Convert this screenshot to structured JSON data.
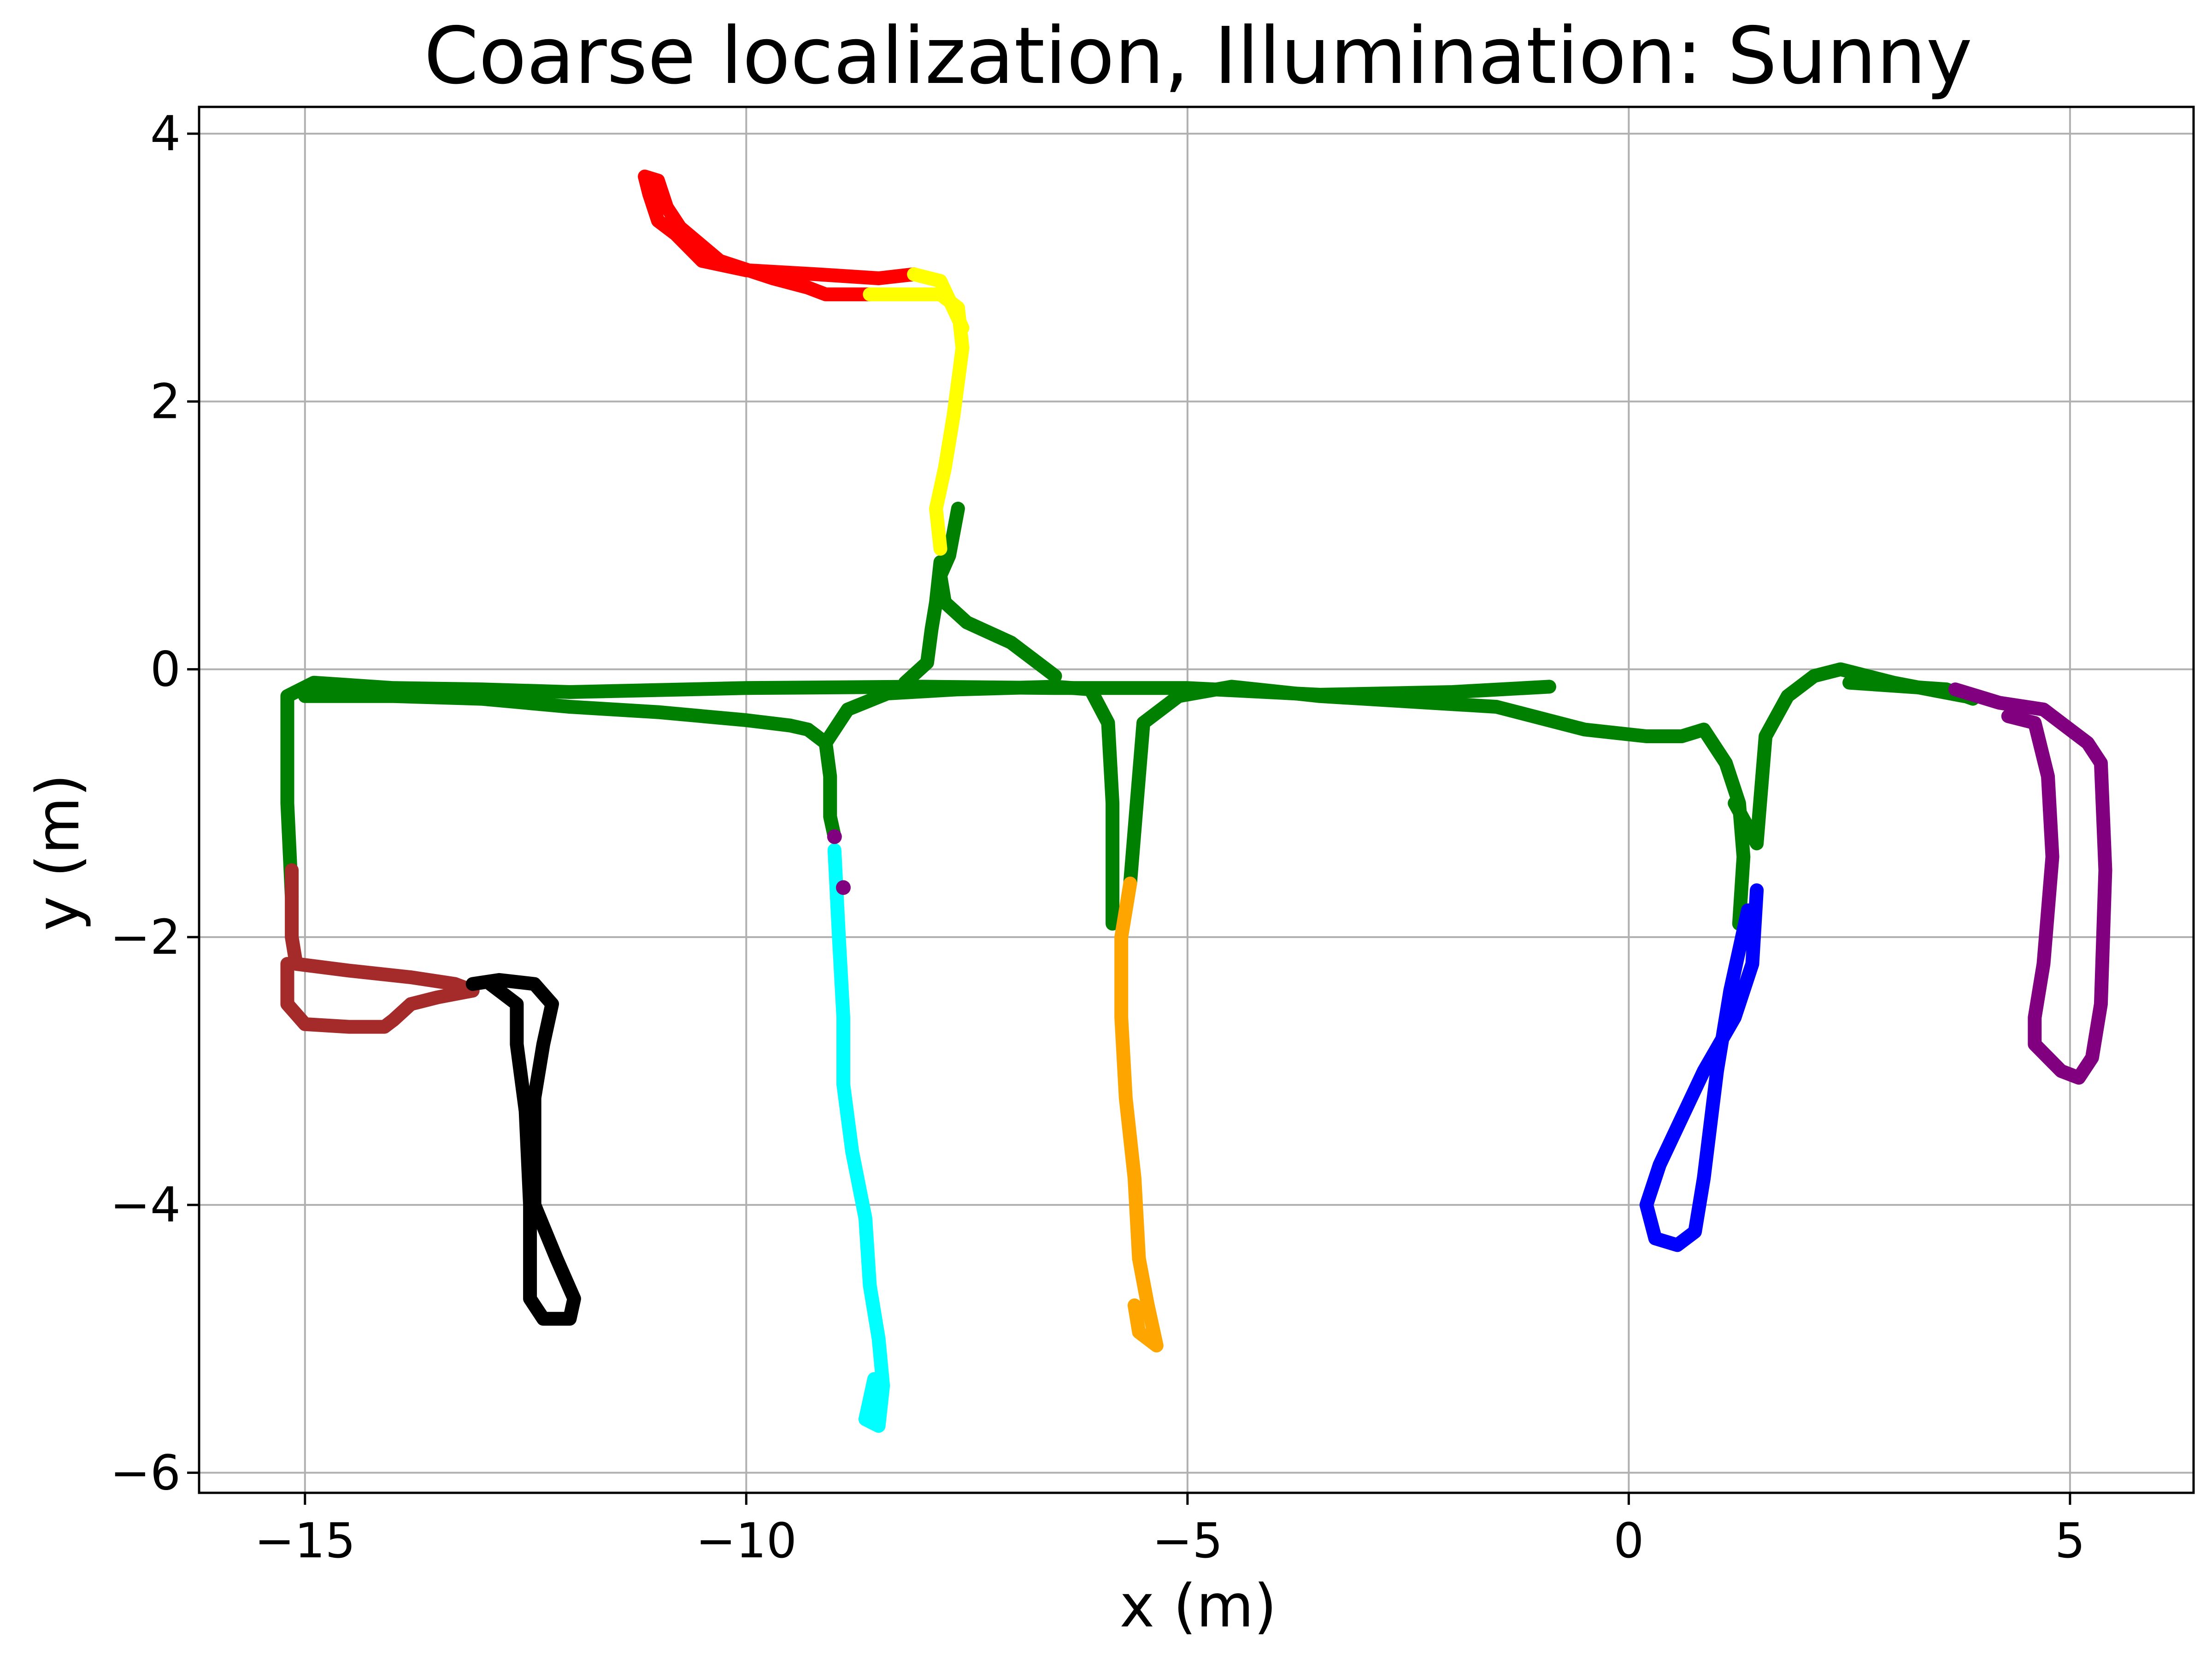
{
  "chart_data": {
    "type": "scatter",
    "title": "Coarse localization, Illumination: Sunny",
    "xlabel": "x (m)",
    "ylabel": "y (m)",
    "xlim": [
      -16.2,
      6.4
    ],
    "ylim": [
      -6.15,
      4.2
    ],
    "xticks": [
      -15,
      -10,
      -5,
      0,
      5
    ],
    "xtick_labels": [
      "−15",
      "−10",
      "−5",
      "0",
      "5"
    ],
    "yticks": [
      -6,
      -4,
      -2,
      0,
      2,
      4
    ],
    "ytick_labels": [
      "−6",
      "−4",
      "−2",
      "0",
      "2",
      "4"
    ],
    "grid": true,
    "series": [
      {
        "color": "#008000",
        "paths": [
          [
            [
              -0.9,
              -0.13
            ],
            [
              -2.0,
              -0.17
            ],
            [
              -3.5,
              -0.19
            ],
            [
              -5.0,
              -0.14
            ],
            [
              -6.5,
              -0.14
            ],
            [
              -8.0,
              -0.13
            ],
            [
              -10.0,
              -0.14
            ],
            [
              -12.0,
              -0.17
            ],
            [
              -13.0,
              -0.15
            ],
            [
              -14.0,
              -0.14
            ],
            [
              -14.9,
              -0.1
            ],
            [
              -15.2,
              -0.2
            ],
            [
              -15.2,
              -1.0
            ],
            [
              -15.15,
              -1.7
            ]
          ],
          [
            [
              -15.0,
              -0.2
            ],
            [
              -14.0,
              -0.2
            ],
            [
              -13.0,
              -0.22
            ],
            [
              -12.0,
              -0.28
            ],
            [
              -11.0,
              -0.32
            ],
            [
              -10.0,
              -0.38
            ],
            [
              -9.5,
              -0.42
            ],
            [
              -9.3,
              -0.45
            ],
            [
              -9.1,
              -0.55
            ],
            [
              -9.05,
              -0.8
            ],
            [
              -9.05,
              -1.1
            ],
            [
              -9.0,
              -1.25
            ]
          ],
          [
            [
              -9.1,
              -0.55
            ],
            [
              -8.85,
              -0.3
            ],
            [
              -8.4,
              -0.18
            ],
            [
              -7.6,
              -0.15
            ],
            [
              -6.5,
              -0.13
            ],
            [
              -6.1,
              -0.15
            ],
            [
              -5.9,
              -0.4
            ],
            [
              -5.85,
              -1.0
            ],
            [
              -5.85,
              -1.9
            ]
          ],
          [
            [
              -5.65,
              -1.6
            ],
            [
              -5.55,
              -0.8
            ],
            [
              -5.5,
              -0.4
            ],
            [
              -5.1,
              -0.2
            ],
            [
              -4.5,
              -0.13
            ],
            [
              -3.5,
              -0.2
            ],
            [
              -2.5,
              -0.24
            ],
            [
              -1.5,
              -0.28
            ],
            [
              -0.5,
              -0.45
            ],
            [
              0.2,
              -0.5
            ],
            [
              0.6,
              -0.5
            ],
            [
              0.85,
              -0.45
            ],
            [
              1.1,
              -0.7
            ],
            [
              1.25,
              -1.0
            ],
            [
              1.3,
              -1.4
            ],
            [
              1.25,
              -1.9
            ]
          ],
          [
            [
              1.2,
              -1.0
            ],
            [
              1.45,
              -1.3
            ],
            [
              1.55,
              -0.5
            ],
            [
              1.8,
              -0.2
            ],
            [
              2.1,
              -0.05
            ],
            [
              2.4,
              0.0
            ],
            [
              3.0,
              -0.1
            ],
            [
              3.8,
              -0.2
            ]
          ],
          [
            [
              2.5,
              -0.1
            ],
            [
              3.6,
              -0.15
            ],
            [
              3.9,
              -0.22
            ]
          ],
          [
            [
              -7.6,
              1.2
            ],
            [
              -7.7,
              0.85
            ],
            [
              -7.8,
              0.7
            ],
            [
              -7.75,
              0.5
            ],
            [
              -7.5,
              0.35
            ],
            [
              -7.0,
              0.2
            ],
            [
              -6.7,
              0.05
            ],
            [
              -6.5,
              -0.05
            ]
          ],
          [
            [
              -7.8,
              0.8
            ],
            [
              -7.85,
              0.5
            ],
            [
              -7.9,
              0.3
            ],
            [
              -7.95,
              0.05
            ],
            [
              -8.2,
              -0.1
            ]
          ]
        ]
      },
      {
        "color": "#ff0000",
        "paths": [
          [
            [
              -8.1,
              2.95
            ],
            [
              -8.5,
              2.92
            ],
            [
              -9.2,
              2.95
            ],
            [
              -10.0,
              2.98
            ],
            [
              -10.5,
              3.05
            ],
            [
              -10.8,
              3.25
            ],
            [
              -11.0,
              3.35
            ],
            [
              -11.1,
              3.55
            ],
            [
              -11.15,
              3.68
            ],
            [
              -11.0,
              3.65
            ],
            [
              -10.9,
              3.45
            ],
            [
              -10.75,
              3.3
            ],
            [
              -10.3,
              3.05
            ],
            [
              -9.7,
              2.92
            ],
            [
              -9.3,
              2.85
            ],
            [
              -9.1,
              2.8
            ],
            [
              -8.6,
              2.8
            ]
          ]
        ]
      },
      {
        "color": "#ffff00",
        "paths": [
          [
            [
              -8.6,
              2.8
            ],
            [
              -7.8,
              2.8
            ],
            [
              -7.6,
              2.7
            ],
            [
              -7.55,
              2.4
            ],
            [
              -7.65,
              1.9
            ],
            [
              -7.75,
              1.5
            ],
            [
              -7.85,
              1.2
            ],
            [
              -7.8,
              0.9
            ]
          ],
          [
            [
              -8.1,
              2.95
            ],
            [
              -7.8,
              2.9
            ],
            [
              -7.55,
              2.55
            ]
          ]
        ]
      },
      {
        "color": "#a52a2a",
        "paths": [
          [
            [
              -15.15,
              -1.5
            ],
            [
              -15.15,
              -2.0
            ],
            [
              -15.1,
              -2.2
            ],
            [
              -14.5,
              -2.25
            ],
            [
              -13.8,
              -2.3
            ],
            [
              -13.3,
              -2.35
            ],
            [
              -13.1,
              -2.4
            ],
            [
              -13.5,
              -2.45
            ],
            [
              -13.8,
              -2.5
            ],
            [
              -14.0,
              -2.62
            ],
            [
              -14.1,
              -2.67
            ],
            [
              -14.5,
              -2.67
            ],
            [
              -15.0,
              -2.65
            ],
            [
              -15.2,
              -2.5
            ],
            [
              -15.2,
              -2.2
            ]
          ]
        ]
      },
      {
        "color": "#000000",
        "paths": [
          [
            [
              -13.1,
              -2.35
            ],
            [
              -12.8,
              -2.32
            ],
            [
              -12.4,
              -2.35
            ],
            [
              -12.2,
              -2.5
            ],
            [
              -12.3,
              -2.8
            ],
            [
              -12.4,
              -3.2
            ],
            [
              -12.4,
              -4.0
            ],
            [
              -12.15,
              -4.4
            ],
            [
              -11.95,
              -4.7
            ],
            [
              -12.0,
              -4.85
            ],
            [
              -12.3,
              -4.85
            ],
            [
              -12.45,
              -4.7
            ],
            [
              -12.45,
              -4.0
            ],
            [
              -12.5,
              -3.3
            ],
            [
              -12.6,
              -2.8
            ],
            [
              -12.6,
              -2.5
            ],
            [
              -12.9,
              -2.35
            ]
          ]
        ]
      },
      {
        "color": "#00ffff",
        "paths": [
          [
            [
              -9.0,
              -1.35
            ],
            [
              -8.95,
              -2.0
            ],
            [
              -8.9,
              -2.6
            ],
            [
              -8.9,
              -3.1
            ],
            [
              -8.8,
              -3.6
            ],
            [
              -8.65,
              -4.1
            ],
            [
              -8.6,
              -4.6
            ],
            [
              -8.5,
              -5.0
            ],
            [
              -8.45,
              -5.35
            ],
            [
              -8.5,
              -5.65
            ],
            [
              -8.65,
              -5.6
            ],
            [
              -8.55,
              -5.3
            ]
          ]
        ]
      },
      {
        "color": "#ffa500",
        "paths": [
          [
            [
              -5.65,
              -1.6
            ],
            [
              -5.75,
              -2.0
            ],
            [
              -5.75,
              -2.6
            ],
            [
              -5.7,
              -3.2
            ],
            [
              -5.6,
              -3.8
            ],
            [
              -5.55,
              -4.4
            ],
            [
              -5.45,
              -4.75
            ],
            [
              -5.35,
              -5.05
            ],
            [
              -5.55,
              -4.95
            ],
            [
              -5.6,
              -4.75
            ]
          ]
        ]
      },
      {
        "color": "#0000ff",
        "paths": [
          [
            [
              1.45,
              -1.65
            ],
            [
              1.4,
              -2.2
            ],
            [
              1.2,
              -2.6
            ],
            [
              0.85,
              -3.0
            ],
            [
              0.6,
              -3.35
            ],
            [
              0.35,
              -3.7
            ],
            [
              0.2,
              -4.0
            ],
            [
              0.3,
              -4.25
            ],
            [
              0.55,
              -4.3
            ],
            [
              0.75,
              -4.2
            ],
            [
              0.85,
              -3.8
            ],
            [
              1.0,
              -3.0
            ],
            [
              1.15,
              -2.4
            ],
            [
              1.35,
              -1.8
            ]
          ]
        ]
      },
      {
        "color": "#800080",
        "paths": [
          [
            [
              3.7,
              -0.15
            ],
            [
              4.2,
              -0.25
            ],
            [
              4.7,
              -0.3
            ],
            [
              4.9,
              -0.4
            ],
            [
              5.2,
              -0.55
            ],
            [
              5.35,
              -0.7
            ],
            [
              5.4,
              -1.5
            ],
            [
              5.35,
              -2.5
            ],
            [
              5.25,
              -2.9
            ],
            [
              5.1,
              -3.05
            ],
            [
              4.9,
              -3.0
            ],
            [
              4.6,
              -2.8
            ],
            [
              4.6,
              -2.6
            ],
            [
              4.7,
              -2.2
            ],
            [
              4.75,
              -1.8
            ],
            [
              4.8,
              -1.4
            ],
            [
              4.75,
              -0.8
            ],
            [
              4.6,
              -0.4
            ],
            [
              4.3,
              -0.35
            ]
          ]
        ]
      },
      {
        "color": "#800080",
        "marker": "points",
        "points": [
          [
            -9.0,
            -1.25
          ],
          [
            -8.9,
            -1.63
          ]
        ]
      }
    ]
  }
}
